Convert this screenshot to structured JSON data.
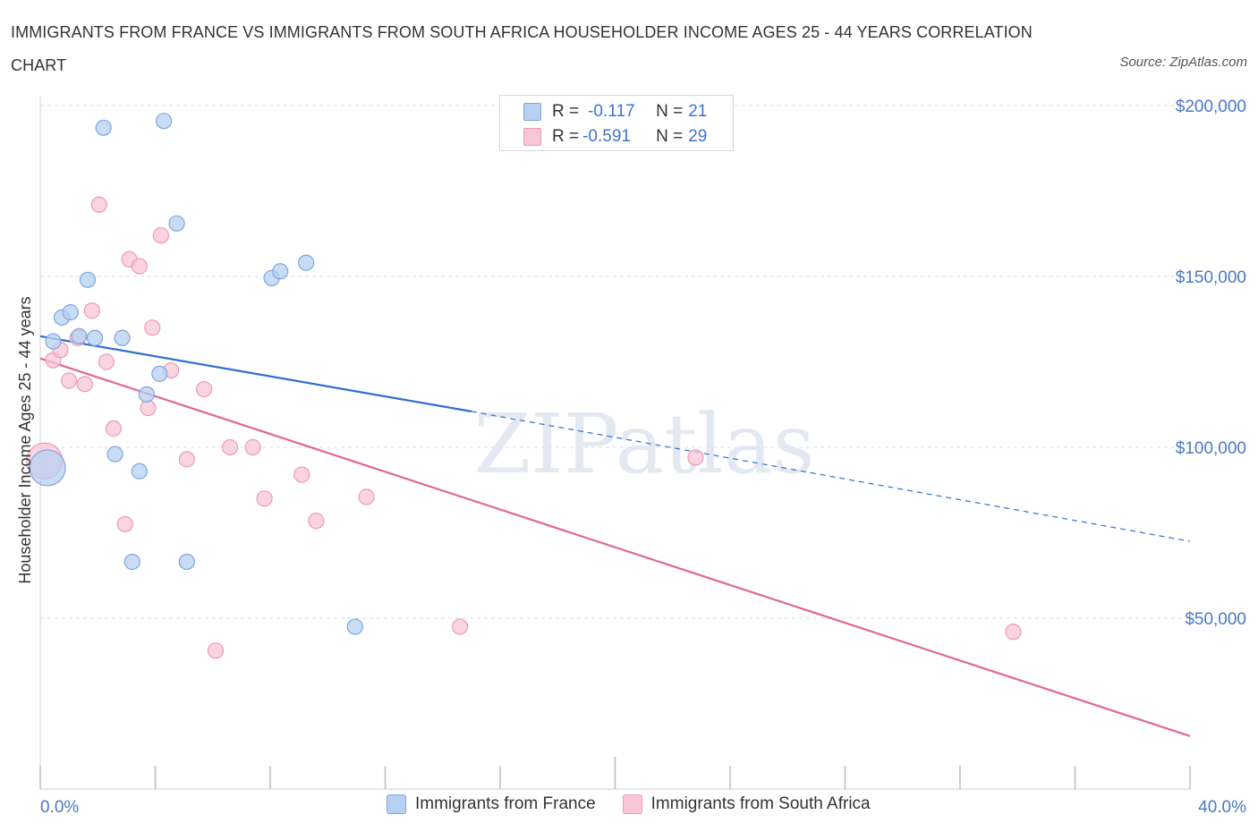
{
  "title": "IMMIGRANTS FROM FRANCE VS IMMIGRANTS FROM SOUTH AFRICA HOUSEHOLDER INCOME AGES 25 - 44 YEARS CORRELATION CHART",
  "source": "Source: ZipAtlas.com",
  "watermark": "ZIPatlas",
  "colors": {
    "france_fill": "#b7d0f2",
    "france_stroke": "#7ea6e0",
    "france_line": "#2f6fcf",
    "south_africa_fill": "#f8c6d6",
    "south_africa_stroke": "#ee9ab5",
    "south_africa_line": "#e06890",
    "grid": "#dddddd",
    "tick_label": "#4a79c4"
  },
  "legend": {
    "france": {
      "r_label": "R = ",
      "r_value": "-0.117",
      "n_label": "N = ",
      "n_value": "21"
    },
    "south_africa": {
      "r_label": "R = ",
      "r_value": "-0.591",
      "n_label": "N = ",
      "n_value": "29"
    }
  },
  "chart_data": {
    "type": "scatter",
    "title": "IMMIGRANTS FROM FRANCE VS IMMIGRANTS FROM SOUTH AFRICA HOUSEHOLDER INCOME AGES 25 - 44 YEARS CORRELATION CHART",
    "xlabel": "",
    "ylabel": "Householder Income Ages 25 - 44 years",
    "xlim": [
      0,
      40
    ],
    "ylim": [
      0,
      200000
    ],
    "x_tick_labels": [
      "0.0%",
      "40.0%"
    ],
    "y_tick_labels": [
      "$50,000",
      "$100,000",
      "$150,000",
      "$200,000"
    ],
    "y_ticks": [
      50000,
      100000,
      150000,
      200000
    ],
    "grid": true,
    "legend_position": "top-center",
    "series": [
      {
        "name": "Immigrants from France",
        "points": [
          {
            "x": 0.25,
            "y": 94000,
            "size": "large"
          },
          {
            "x": 0.45,
            "y": 131000
          },
          {
            "x": 0.75,
            "y": 138000
          },
          {
            "x": 1.05,
            "y": 139500
          },
          {
            "x": 1.35,
            "y": 132500
          },
          {
            "x": 1.65,
            "y": 149000
          },
          {
            "x": 1.9,
            "y": 132000
          },
          {
            "x": 2.2,
            "y": 193500
          },
          {
            "x": 2.6,
            "y": 98000
          },
          {
            "x": 2.85,
            "y": 132000
          },
          {
            "x": 3.2,
            "y": 66500
          },
          {
            "x": 3.45,
            "y": 93000
          },
          {
            "x": 3.7,
            "y": 115500
          },
          {
            "x": 4.15,
            "y": 121500
          },
          {
            "x": 4.3,
            "y": 195500
          },
          {
            "x": 4.75,
            "y": 165500
          },
          {
            "x": 5.1,
            "y": 66500
          },
          {
            "x": 8.05,
            "y": 149500
          },
          {
            "x": 8.35,
            "y": 151500
          },
          {
            "x": 9.25,
            "y": 154000
          },
          {
            "x": 10.95,
            "y": 47500
          }
        ],
        "trend": {
          "x": [
            0.0,
            15.0
          ],
          "y": [
            132500,
            110500
          ],
          "dashed_to": {
            "x": 40.0,
            "y": 72500
          }
        }
      },
      {
        "name": "Immigrants from South Africa",
        "points": [
          {
            "x": 0.15,
            "y": 96000,
            "size": "large"
          },
          {
            "x": 0.45,
            "y": 125500
          },
          {
            "x": 0.7,
            "y": 128500
          },
          {
            "x": 1.0,
            "y": 119500
          },
          {
            "x": 1.3,
            "y": 132000
          },
          {
            "x": 1.55,
            "y": 118500
          },
          {
            "x": 1.8,
            "y": 140000
          },
          {
            "x": 2.05,
            "y": 171000
          },
          {
            "x": 2.3,
            "y": 125000
          },
          {
            "x": 2.55,
            "y": 105500
          },
          {
            "x": 2.95,
            "y": 77500
          },
          {
            "x": 3.1,
            "y": 155000
          },
          {
            "x": 3.45,
            "y": 153000
          },
          {
            "x": 3.75,
            "y": 111500
          },
          {
            "x": 3.9,
            "y": 135000
          },
          {
            "x": 4.2,
            "y": 162000
          },
          {
            "x": 4.55,
            "y": 122500
          },
          {
            "x": 5.1,
            "y": 96500
          },
          {
            "x": 5.7,
            "y": 117000
          },
          {
            "x": 6.1,
            "y": 40500
          },
          {
            "x": 6.6,
            "y": 100000
          },
          {
            "x": 7.4,
            "y": 100000
          },
          {
            "x": 7.8,
            "y": 85000
          },
          {
            "x": 9.1,
            "y": 92000
          },
          {
            "x": 9.6,
            "y": 78500
          },
          {
            "x": 11.35,
            "y": 85500
          },
          {
            "x": 14.6,
            "y": 47500
          },
          {
            "x": 22.8,
            "y": 97000
          },
          {
            "x": 33.85,
            "y": 46000
          }
        ],
        "trend": {
          "x": [
            0.0,
            40.0
          ],
          "y": [
            126000,
            15500
          ]
        }
      }
    ]
  }
}
